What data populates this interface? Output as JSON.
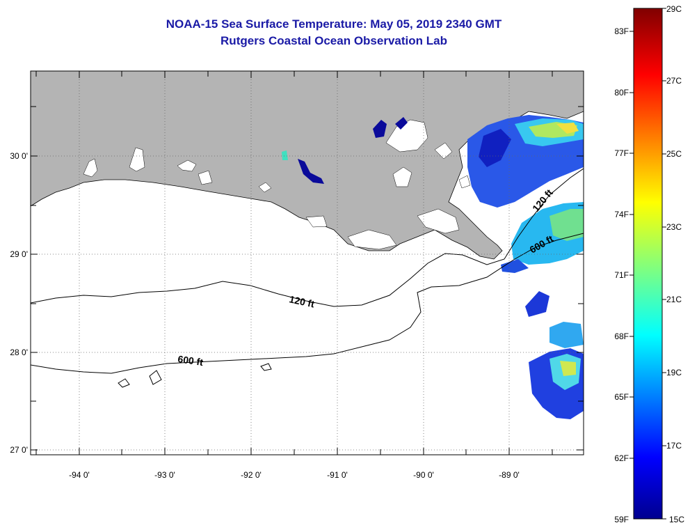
{
  "title": "NOAA-15 Sea Surface Temperature:  May 05, 2019 2340 GMT",
  "subtitle": "Rutgers Coastal Ocean Observation Lab",
  "axes": {
    "lon_ticks": [
      "-94 0'",
      "-93 0'",
      "-92 0'",
      "-91 0'",
      "-90 0'",
      "-89 0'"
    ],
    "lat_ticks": [
      "30 0'",
      "29 0'",
      "28 0'",
      "27 0'"
    ]
  },
  "contours": [
    {
      "depth_label": "120 ft"
    },
    {
      "depth_label": "600 ft"
    }
  ],
  "contour_labels": [
    "120 ft",
    "600 ft",
    "120 ft",
    "600 ft"
  ],
  "colorbar": {
    "celsius_labels": [
      "29C",
      "27C",
      "25C",
      "23C",
      "21C",
      "19C",
      "17C",
      "15C"
    ],
    "fahrenheit_labels": [
      "83F",
      "80F",
      "77F",
      "74F",
      "71F",
      "68F",
      "65F",
      "62F",
      "59F"
    ],
    "min_c": 15,
    "max_c": 29
  },
  "colors": {
    "title": "#1a1aa6",
    "land": "#b4b4b4",
    "ocean": "#ffffff"
  }
}
